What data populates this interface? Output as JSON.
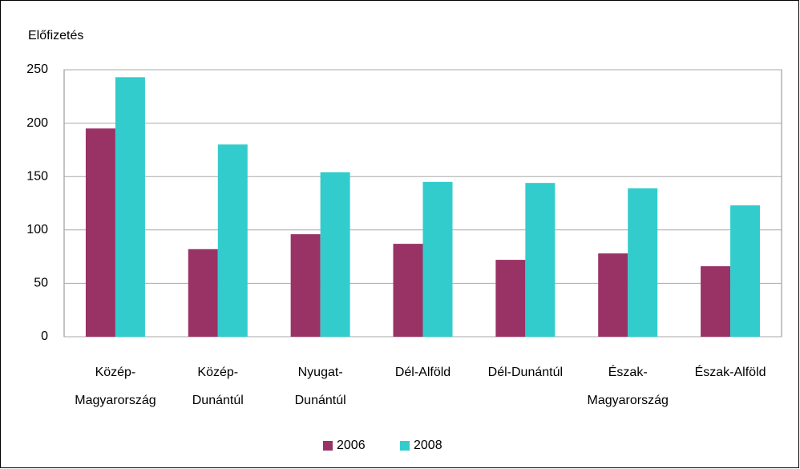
{
  "chart_data": {
    "type": "bar",
    "y_axis_label": "Előfizetés",
    "categories": [
      [
        "Közép-",
        "Magyarország"
      ],
      [
        "Közép-",
        "Dunántúl"
      ],
      [
        "Nyugat-",
        "Dunántúl"
      ],
      [
        "Dél-Alföld"
      ],
      [
        "Dél-Dunántúl"
      ],
      [
        "Észak-",
        "Magyarország"
      ],
      [
        "Észak-Alföld"
      ]
    ],
    "series": [
      {
        "name": "2006",
        "color": "#993366",
        "values": [
          195,
          82,
          96,
          87,
          72,
          78,
          66
        ]
      },
      {
        "name": "2008",
        "color": "#33cccc",
        "values": [
          243,
          180,
          154,
          145,
          144,
          139,
          123
        ]
      }
    ],
    "ylim": [
      0,
      250
    ],
    "yticks": [
      0,
      50,
      100,
      150,
      200,
      250
    ],
    "grid": true,
    "legend": "bottom"
  }
}
